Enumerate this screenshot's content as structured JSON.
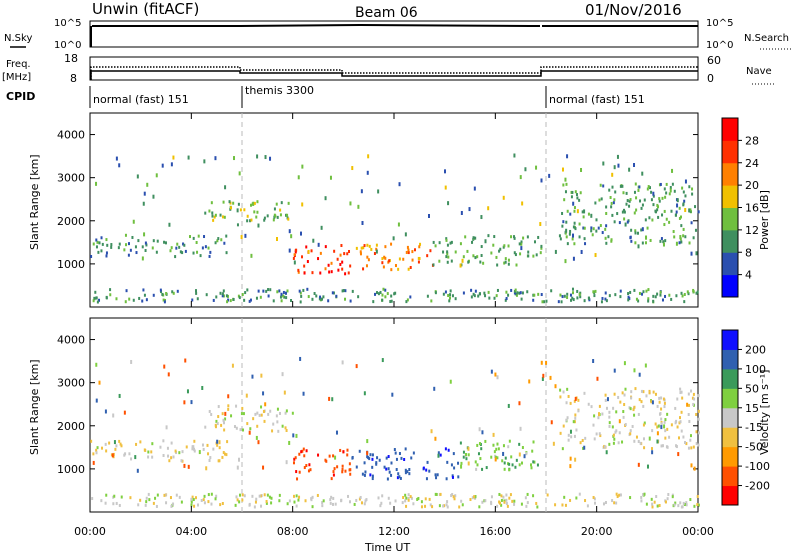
{
  "header": {
    "station": "Unwin (fitACF)",
    "beam": "Beam 06",
    "date": "01/Nov/2016"
  },
  "top_panels": {
    "nsky_label": "N.Sky",
    "nsky_ticks": [
      "10^5",
      "10^0"
    ],
    "nsearch_label": "N.Search",
    "nsearch_ticks": [
      "10^5",
      "10^0"
    ],
    "freq_label_line1": "Freq.",
    "freq_label_line2": "[MHz]",
    "freq_ticks": [
      "18",
      "8"
    ],
    "nave_label": "Nave",
    "nave_ticks": [
      "60",
      "0"
    ],
    "cpid_label": "CPID",
    "cpid_segments": [
      {
        "label": "normal (fast) 151",
        "start_h": 0,
        "end_h": 6
      },
      {
        "label": "themis 3300",
        "start_h": 6,
        "end_h": 18
      },
      {
        "label": "normal (fast) 151",
        "start_h": 18,
        "end_h": 24
      }
    ]
  },
  "power_colorbar": {
    "label": "Power [dB]",
    "ticks": [
      "4",
      "8",
      "12",
      "16",
      "20",
      "24",
      "28"
    ],
    "colors": [
      "#0000ff",
      "#2a4faf",
      "#3f8f5f",
      "#6fbf3f",
      "#f0c000",
      "#ff8000",
      "#ff3000",
      "#ff0000"
    ]
  },
  "velocity_colorbar": {
    "label": "Velocity [m s⁻¹]",
    "ticks": [
      "-200",
      "-100",
      "-50",
      "-15",
      "15",
      "50",
      "100",
      "200"
    ],
    "colors": [
      "#ff0000",
      "#ff5000",
      "#ff9a00",
      "#f0c040",
      "#c8c8c8",
      "#7fd040",
      "#3a9a5a",
      "#3060b0",
      "#1010ff"
    ]
  },
  "chart_data": [
    {
      "type": "heatmap",
      "panel": "power",
      "ylabel": "Slant Range [km]",
      "xlabel": "",
      "x_range_h": [
        0,
        24
      ],
      "ylim": [
        0,
        4500
      ],
      "ytick_labels": [
        "1000",
        "2000",
        "3000",
        "4000"
      ],
      "ytick_values": [
        1000,
        2000,
        3000,
        4000
      ],
      "regions": [
        {
          "x0": 0,
          "x1": 5.5,
          "y0": 1200,
          "y1": 1700,
          "value": 10
        },
        {
          "x0": 4.5,
          "x1": 8,
          "y0": 1900,
          "y1": 2500,
          "value": 14
        },
        {
          "x0": 8,
          "x1": 10.3,
          "y0": 800,
          "y1": 1500,
          "value": 27
        },
        {
          "x0": 10.3,
          "x1": 13.5,
          "y0": 900,
          "y1": 1500,
          "value": 22
        },
        {
          "x0": 13.5,
          "x1": 17.8,
          "y0": 1000,
          "y1": 1700,
          "value": 12
        },
        {
          "x0": 18.5,
          "x1": 24,
          "y0": 1500,
          "y1": 2900,
          "value": 11
        }
      ]
    },
    {
      "type": "heatmap",
      "panel": "velocity",
      "ylabel": "Slant Range [km]",
      "xlabel": "Time UT",
      "x_range_h": [
        0,
        24
      ],
      "ylim": [
        0,
        4500
      ],
      "ytick_labels": [
        "1000",
        "2000",
        "3000",
        "4000"
      ],
      "ytick_values": [
        1000,
        2000,
        3000,
        4000
      ],
      "xtick_labels": [
        "00:00",
        "04:00",
        "08:00",
        "12:00",
        "16:00",
        "20:00",
        "00:00"
      ],
      "xtick_values": [
        0,
        4,
        8,
        12,
        16,
        20,
        24
      ],
      "regions": [
        {
          "x0": 0,
          "x1": 5.5,
          "y0": 1200,
          "y1": 1700,
          "value": -10
        },
        {
          "x0": 4.5,
          "x1": 8,
          "y0": 1900,
          "y1": 2500,
          "value": 0
        },
        {
          "x0": 8,
          "x1": 10.3,
          "y0": 800,
          "y1": 1500,
          "value": -180
        },
        {
          "x0": 10.3,
          "x1": 14.5,
          "y0": 800,
          "y1": 1500,
          "value": 180
        },
        {
          "x0": 14.5,
          "x1": 17.8,
          "y0": 1000,
          "y1": 1700,
          "value": 40
        },
        {
          "x0": 18.5,
          "x1": 24,
          "y0": 1500,
          "y1": 2900,
          "value": -5
        }
      ]
    }
  ]
}
